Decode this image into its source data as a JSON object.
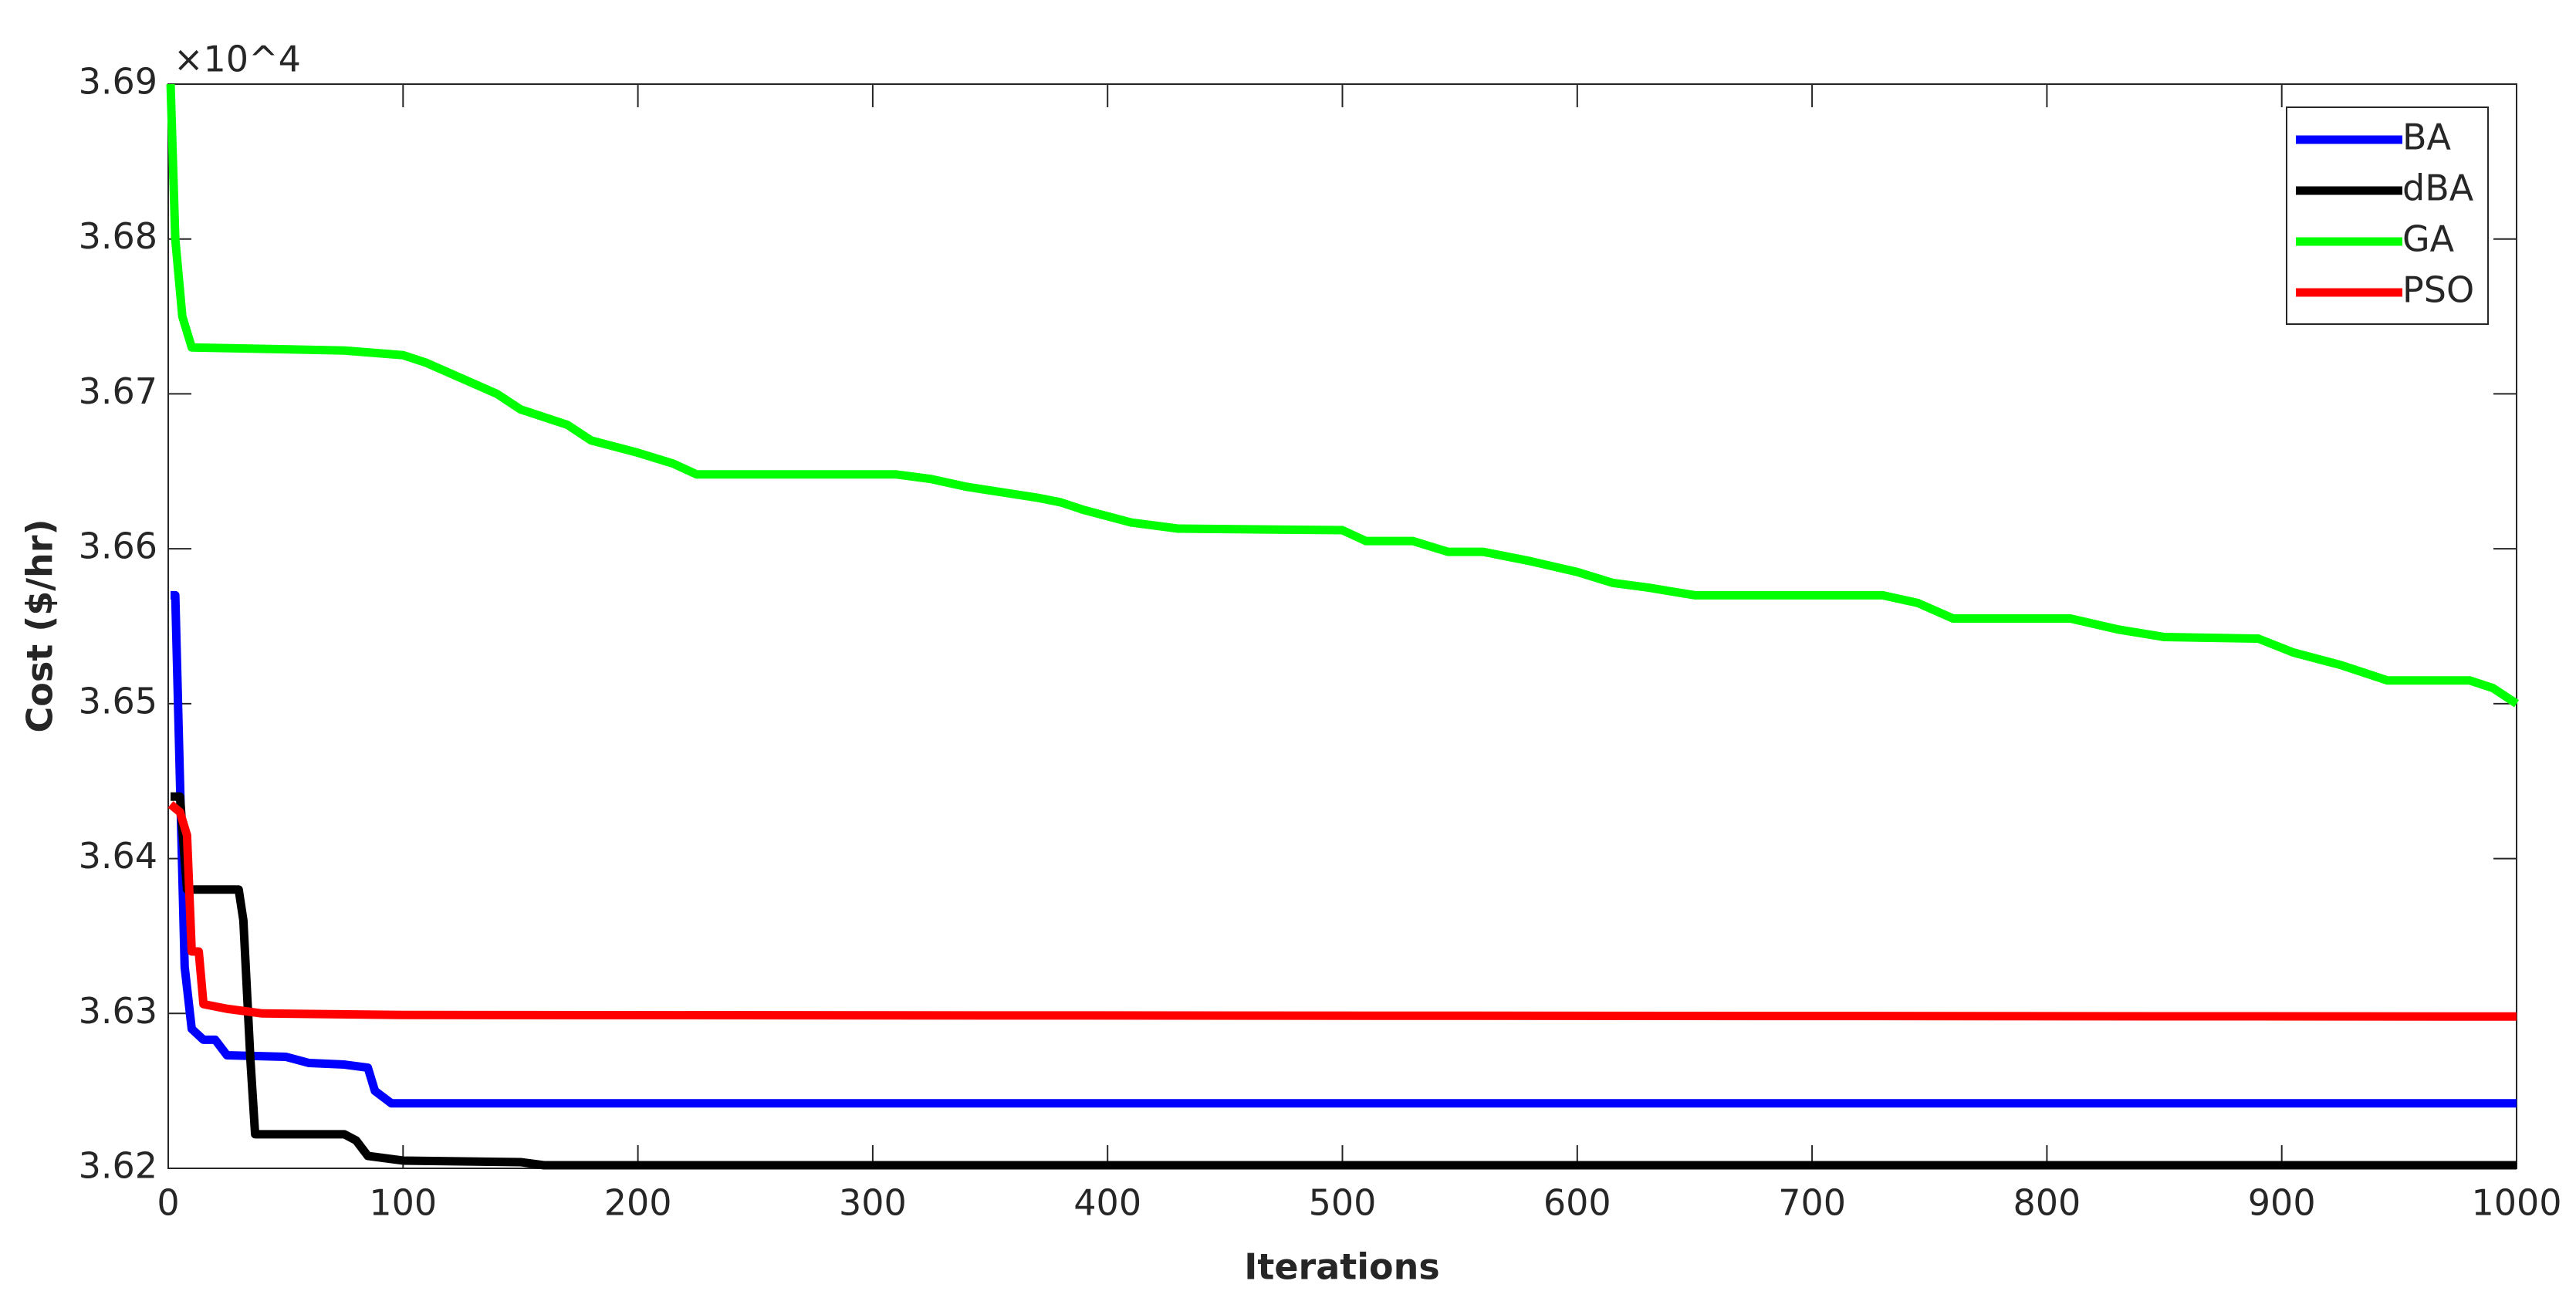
{
  "chart_data": {
    "type": "line",
    "xlabel": "Iterations",
    "ylabel": "Cost ($/hr)",
    "multiplier": "×10^4",
    "xlim": [
      0,
      1000
    ],
    "xticks": [
      0,
      100,
      200,
      300,
      400,
      500,
      600,
      700,
      800,
      900,
      1000
    ],
    "ylim": [
      3.62,
      3.69
    ],
    "yticks": [
      3.62,
      3.63,
      3.64,
      3.65,
      3.66,
      3.67,
      3.68,
      3.69
    ],
    "grid": false,
    "legend": "upper right",
    "series": [
      {
        "name": "BA",
        "color": "#0000ff",
        "x": [
          1,
          3,
          5,
          7,
          10,
          15,
          20,
          25,
          50,
          60,
          75,
          85,
          88,
          95,
          1000
        ],
        "values": [
          3.657,
          3.657,
          3.645,
          3.633,
          3.629,
          3.6283,
          3.6283,
          3.6273,
          3.6272,
          3.6268,
          3.6267,
          3.6265,
          3.625,
          3.6242,
          3.6242
        ]
      },
      {
        "name": "dBA",
        "color": "#000000",
        "x": [
          1,
          5,
          8,
          25,
          30,
          32,
          35,
          37,
          75,
          80,
          85,
          100,
          150,
          160,
          1000
        ],
        "values": [
          3.644,
          3.644,
          3.638,
          3.638,
          3.638,
          3.636,
          3.627,
          3.6222,
          3.6222,
          3.6218,
          3.6208,
          3.6205,
          3.6204,
          3.6202,
          3.6202
        ]
      },
      {
        "name": "GA",
        "color": "#00ff00",
        "x": [
          1,
          3,
          6,
          10,
          75,
          100,
          110,
          140,
          150,
          170,
          180,
          200,
          215,
          225,
          310,
          325,
          340,
          370,
          380,
          390,
          410,
          430,
          500,
          510,
          530,
          545,
          560,
          580,
          600,
          615,
          630,
          650,
          730,
          745,
          760,
          810,
          830,
          850,
          890,
          905,
          925,
          945,
          980,
          990,
          1000
        ],
        "values": [
          3.69,
          3.68,
          3.675,
          3.673,
          3.6728,
          3.6725,
          3.672,
          3.67,
          3.669,
          3.668,
          3.667,
          3.6662,
          3.6655,
          3.6648,
          3.6648,
          3.6645,
          3.664,
          3.6633,
          3.663,
          3.6625,
          3.6617,
          3.6613,
          3.6612,
          3.6605,
          3.6605,
          3.6598,
          3.6598,
          3.6592,
          3.6585,
          3.6578,
          3.6575,
          3.657,
          3.657,
          3.6565,
          3.6555,
          3.6555,
          3.6548,
          3.6543,
          3.6542,
          3.6533,
          3.6525,
          3.6515,
          3.6515,
          3.651,
          3.65
        ]
      },
      {
        "name": "PSO",
        "color": "#ff0000",
        "x": [
          1,
          5,
          8,
          10,
          13,
          15,
          25,
          40,
          100,
          1000
        ],
        "values": [
          3.6435,
          3.643,
          3.6415,
          3.634,
          3.634,
          3.6306,
          3.6303,
          3.63,
          3.6299,
          3.6298
        ]
      }
    ]
  }
}
